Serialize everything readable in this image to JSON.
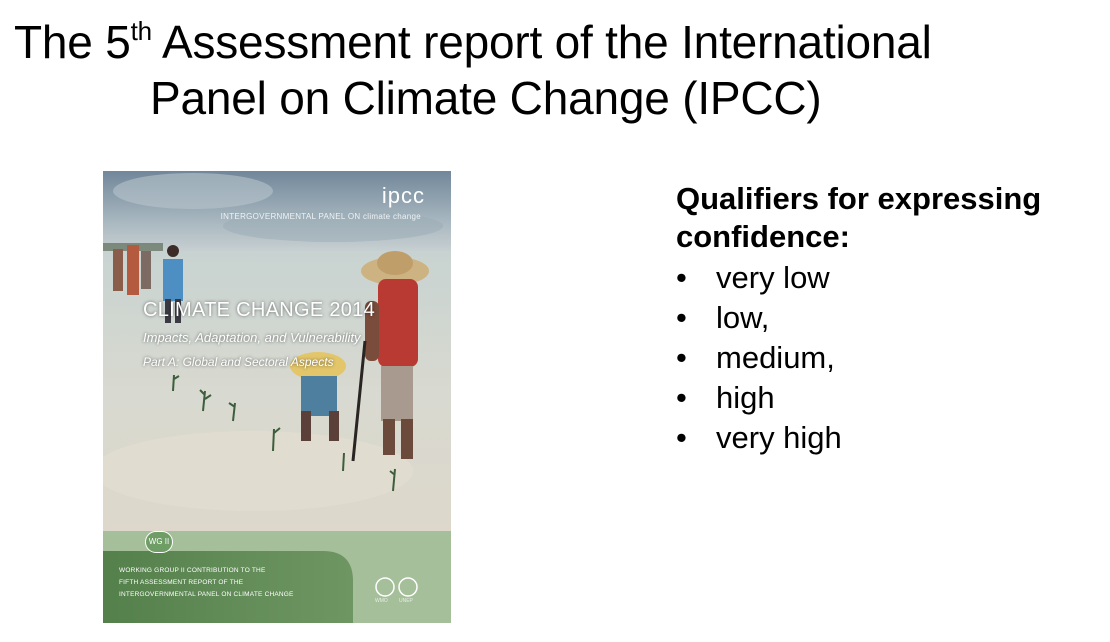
{
  "title": {
    "line1_prefix": "The 5",
    "line1_sup": "th",
    "line1_suffix": " Assessment report of the International",
    "line2": "Panel on Climate Change (IPCC)"
  },
  "cover": {
    "logo": "ipcc",
    "org_name": "INTERGOVERNMENTAL PANEL ON climate change",
    "main_title": "CLIMATE CHANGE 2014",
    "subtitle": "Impacts, Adaptation, and Vulnerability",
    "part": "Part A: Global and Sectoral Aspects",
    "wg_badge": "WG II",
    "contribution_lines": [
      "WORKING GROUP II CONTRIBUTION TO THE",
      "FIFTH ASSESSMENT REPORT OF THE",
      "INTERGOVERNMENTAL PANEL ON CLIMATE CHANGE"
    ],
    "wmo": "WMO",
    "unep": "UNEP",
    "colors": {
      "sky": "#7f96a3",
      "water": "#d9dcd6",
      "footer_green": "#5e8a52",
      "footer_light": "#a7c09c"
    }
  },
  "qualifiers": {
    "heading": "Qualifiers for expressing confidence:",
    "bullet": "•",
    "items": [
      "very low",
      "low,",
      "medium,",
      "high",
      "very high"
    ]
  }
}
